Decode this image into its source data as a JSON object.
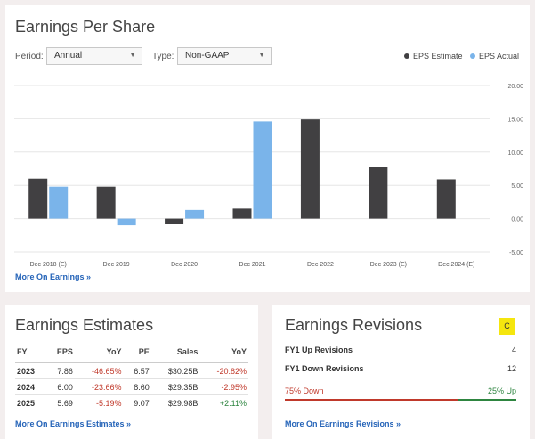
{
  "eps": {
    "title": "Earnings Per Share",
    "period_label": "Period:",
    "period_value": "Annual",
    "type_label": "Type:",
    "type_value": "Non-GAAP",
    "more_link": "More On Earnings »",
    "colors": {
      "estimate": "#414042",
      "actual": "#7ab4ea"
    }
  },
  "chart_data": {
    "type": "bar",
    "categories": [
      "Dec 2018 (E)",
      "Dec 2019",
      "Dec 2020",
      "Dec 2021",
      "Dec 2022",
      "Dec 2023 (E)",
      "Dec 2024 (E)"
    ],
    "series": [
      {
        "name": "EPS Estimate",
        "values": [
          6.0,
          4.8,
          -0.8,
          1.5,
          14.9,
          7.8,
          5.9
        ]
      },
      {
        "name": "EPS Actual",
        "values": [
          4.8,
          -1.0,
          1.3,
          14.6,
          null,
          null,
          null
        ]
      }
    ],
    "yticks": [
      "20.00",
      "15.00",
      "10.00",
      "5.00",
      "0.00",
      "-5.00"
    ],
    "ylim": [
      -5,
      20
    ],
    "legend_position": "top-right",
    "grid": true
  },
  "estimates": {
    "title": "Earnings Estimates",
    "headers": [
      "FY",
      "EPS",
      "YoY",
      "PE",
      "Sales",
      "YoY"
    ],
    "rows": [
      {
        "fy": "2023",
        "eps": "7.86",
        "yoy": "-46.65%",
        "pe": "6.57",
        "sales": "$30.25B",
        "sales_yoy": "-20.82%",
        "yoy_class": "neg",
        "sales_yoy_class": "neg"
      },
      {
        "fy": "2024",
        "eps": "6.00",
        "yoy": "-23.66%",
        "pe": "8.60",
        "sales": "$29.35B",
        "sales_yoy": "-2.95%",
        "yoy_class": "neg",
        "sales_yoy_class": "neg"
      },
      {
        "fy": "2025",
        "eps": "5.69",
        "yoy": "-5.19%",
        "pe": "9.07",
        "sales": "$29.98B",
        "sales_yoy": "+2.11%",
        "yoy_class": "neg",
        "sales_yoy_class": "pos"
      }
    ],
    "more_link": "More On Earnings Estimates »"
  },
  "revisions": {
    "title": "Earnings Revisions",
    "grade": "C",
    "up_label": "FY1 Up Revisions",
    "up_value": "4",
    "down_label": "FY1 Down Revisions",
    "down_value": "12",
    "down_pct_label": "75% Down",
    "up_pct_label": "25% Up",
    "down_fraction": 0.75,
    "more_link": "More On Earnings Revisions »",
    "colors": {
      "down": "#c0392b",
      "up": "#2e8540"
    }
  }
}
